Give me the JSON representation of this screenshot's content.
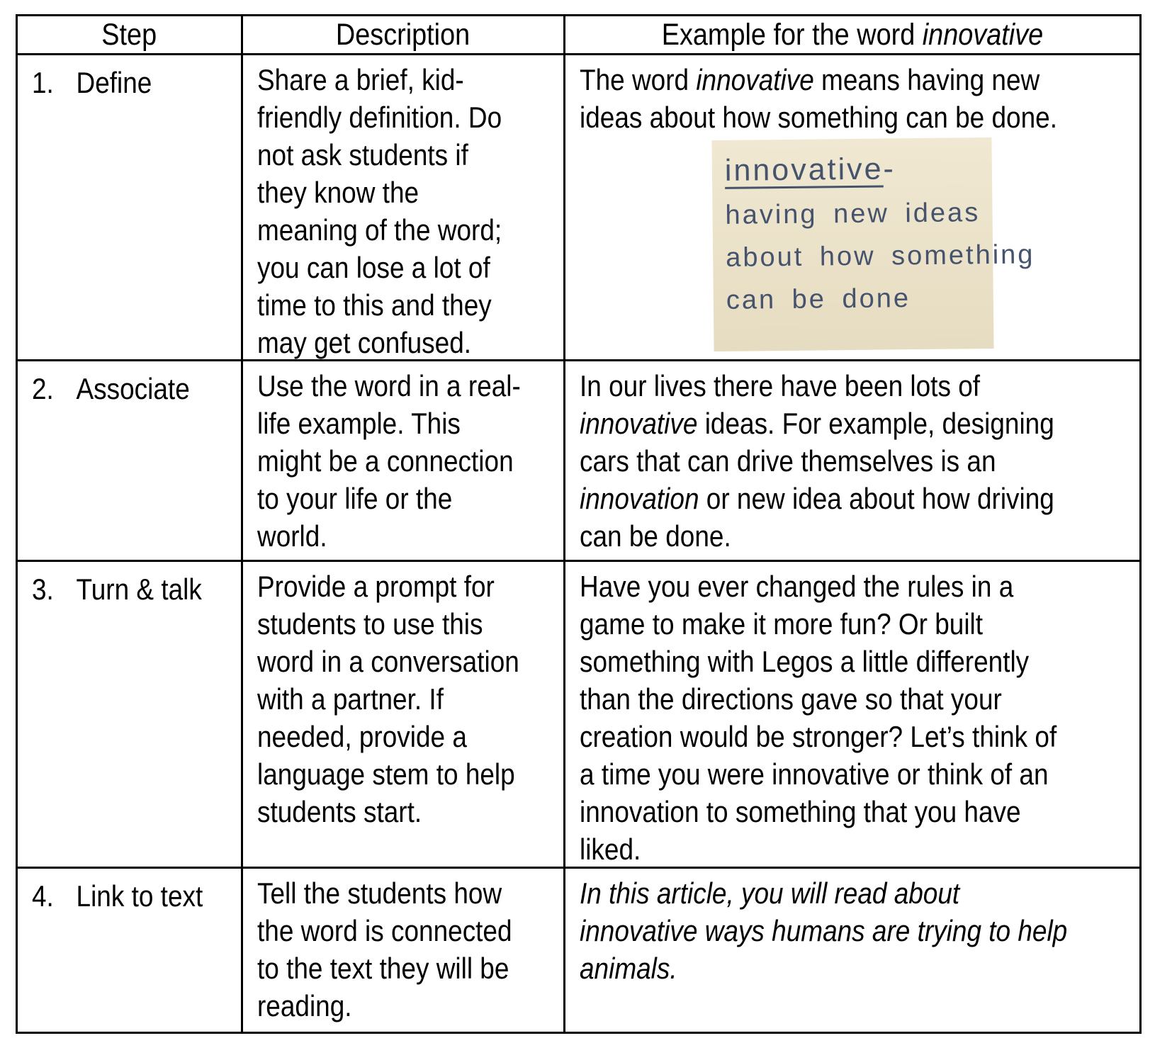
{
  "page": {
    "background": "#ffffff",
    "table_border_color": "#000000"
  },
  "table": {
    "header": {
      "step": "Step",
      "description": "Description",
      "example": [
        {
          "t": "Example for the word "
        },
        {
          "t": "innovative",
          "i": true
        }
      ]
    },
    "rows": [
      {
        "num": "1.",
        "step": "Define",
        "description": "Share a brief, kid-\nfriendly definition. Do\nnot ask students if\nthey know the\nmeaning of the word;\nyou can lose a lot of\ntime to this and they\nmay get confused.",
        "example": [
          {
            "t": "The word "
          },
          {
            "t": "innovative",
            "i": true
          },
          {
            "t": " means having new\nideas about how something can be done."
          }
        ],
        "photo": {
          "lines": [
            [
              {
                "t": "innovative",
                "u": true
              },
              {
                "t": "-"
              }
            ],
            [
              {
                "t": "having new ideas"
              }
            ],
            [
              {
                "t": "about how something"
              }
            ],
            [
              {
                "t": "can be done"
              }
            ]
          ],
          "colors": {
            "background_top": "#f0e8d2",
            "background_bottom": "#e6dcc1",
            "ink": "#46536d"
          }
        }
      },
      {
        "num": "2.",
        "step": "Associate",
        "description": "Use the word in a real-\nlife example. This\nmight be a connection\nto your life or the\nworld.",
        "example": [
          {
            "t": "In our lives there have been lots of\n"
          },
          {
            "t": "innovative",
            "i": true
          },
          {
            "t": " ideas. For example, designing\ncars that can drive themselves is an\n"
          },
          {
            "t": "innovation",
            "i": true
          },
          {
            "t": " or new idea about how driving\ncan be done."
          }
        ]
      },
      {
        "num": "3.",
        "step": "Turn & talk",
        "description": "Provide a prompt for\nstudents to use this\nword in a conversation\nwith a partner. If\nneeded, provide a\nlanguage stem to help\nstudents start.",
        "example": [
          {
            "t": "Have you ever changed the rules in a\ngame to make it more fun? Or built\nsomething with Legos a little differently\nthan the directions gave so that your\ncreation would be stronger? Let’s think of\na time you were innovative or think of an\ninnovation to something that you have\nliked."
          }
        ]
      },
      {
        "num": "4.",
        "step": "Link to text",
        "description": "Tell the students how\nthe word is connected\nto the text they will be\nreading.",
        "example": [
          {
            "t": "In this article, you will read about\ninnovative ways humans are trying to help\nanimals.",
            "i": true
          }
        ]
      }
    ]
  }
}
